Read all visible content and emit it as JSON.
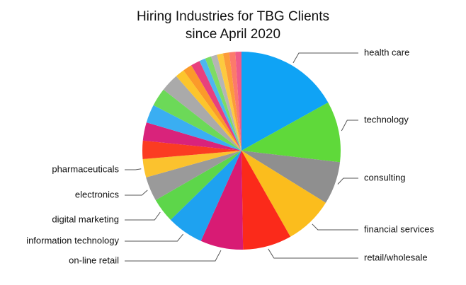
{
  "chart_data": {
    "type": "pie",
    "title": [
      "Hiring Industries for TBG Clients",
      "since April 2020"
    ],
    "categories": [
      "health care",
      "technology",
      "consulting",
      "financial services",
      "retail/wholesale",
      "on-line retail",
      "information technology",
      "digital marketing",
      "electronics",
      "pharmaceuticals",
      null,
      null,
      null,
      null,
      null,
      null,
      null,
      null,
      null,
      null,
      null,
      null,
      null,
      null,
      null
    ],
    "values": [
      17,
      10,
      7,
      8,
      8,
      7,
      6,
      4,
      4,
      3,
      3,
      3,
      3,
      3,
      3,
      1.5,
      1.5,
      1.5,
      1,
      1,
      1,
      1,
      1,
      1,
      1
    ],
    "colors": [
      "#0fa3f5",
      "#5fd93a",
      "#8f8f8f",
      "#fbbd1d",
      "#fb2a1a",
      "#d81b74",
      "#1ea2f0",
      "#5dd64a",
      "#9a9a9a",
      "#fbc22e",
      "#fb3c22",
      "#d9237b",
      "#3aaef2",
      "#6cd958",
      "#aaaaaa",
      "#fcc52c",
      "#fb9a2a",
      "#e8407d",
      "#4db6f0",
      "#7ddc64",
      "#b5b5b5",
      "#fcca3f",
      "#fc9c3a",
      "#fc7a6b",
      "#ef5a8a"
    ]
  }
}
